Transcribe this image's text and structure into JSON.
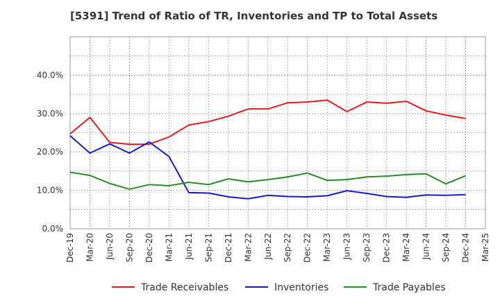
{
  "chart_data": {
    "type": "line",
    "title": "[5391]  Trend of Ratio of TR, Inventories and TP to Total Assets",
    "xlabel": "",
    "ylabel": "",
    "ylim": [
      0,
      50
    ],
    "y_ticks": [
      0,
      10,
      20,
      30,
      40
    ],
    "y_tick_labels": [
      "0.0%",
      "10.0%",
      "20.0%",
      "30.0%",
      "40.0%"
    ],
    "x_tick_labels": [
      "Dec-19",
      "Mar-20",
      "Jun-20",
      "Sep-20",
      "Dec-20",
      "Mar-21",
      "Jun-21",
      "Sep-21",
      "Dec-21",
      "Mar-22",
      "Jun-22",
      "Sep-22",
      "Dec-22",
      "Mar-23",
      "Jun-23",
      "Sep-23",
      "Dec-23",
      "Mar-24",
      "Jun-24",
      "Sep-24",
      "Dec-24",
      "Mar-25"
    ],
    "categories": [
      "Dec-19",
      "Mar-20",
      "Jun-20",
      "Sep-20",
      "Dec-20",
      "Mar-21",
      "Jun-21",
      "Sep-21",
      "Dec-21",
      "Mar-22",
      "Jun-22",
      "Sep-22",
      "Dec-22",
      "Mar-23",
      "Jun-23",
      "Sep-23",
      "Dec-23",
      "Mar-24",
      "Jun-24",
      "Sep-24",
      "Dec-24"
    ],
    "grid": true,
    "legend_position": "bottom",
    "series": [
      {
        "name": "Trade Receivables",
        "color": "#e8191a",
        "values": [
          24.7,
          29.0,
          22.5,
          22.0,
          22.0,
          23.9,
          27.0,
          27.9,
          29.3,
          31.2,
          31.2,
          32.8,
          33.0,
          33.5,
          30.5,
          33.0,
          32.7,
          33.2,
          30.7,
          29.6,
          28.7
        ]
      },
      {
        "name": "Inventories",
        "color": "#1719c9",
        "values": [
          24.2,
          19.7,
          22.1,
          19.7,
          22.6,
          18.8,
          9.4,
          9.3,
          8.3,
          7.8,
          8.7,
          8.4,
          8.3,
          8.6,
          9.9,
          9.2,
          8.4,
          8.2,
          8.8,
          8.7,
          8.9
        ]
      },
      {
        "name": "Trade Payables",
        "color": "#238c23",
        "values": [
          14.7,
          13.9,
          11.8,
          10.3,
          11.5,
          11.2,
          12.1,
          11.5,
          13.0,
          12.2,
          12.8,
          13.5,
          14.5,
          12.6,
          12.8,
          13.5,
          13.7,
          14.1,
          14.3,
          11.7,
          13.8
        ]
      }
    ]
  }
}
